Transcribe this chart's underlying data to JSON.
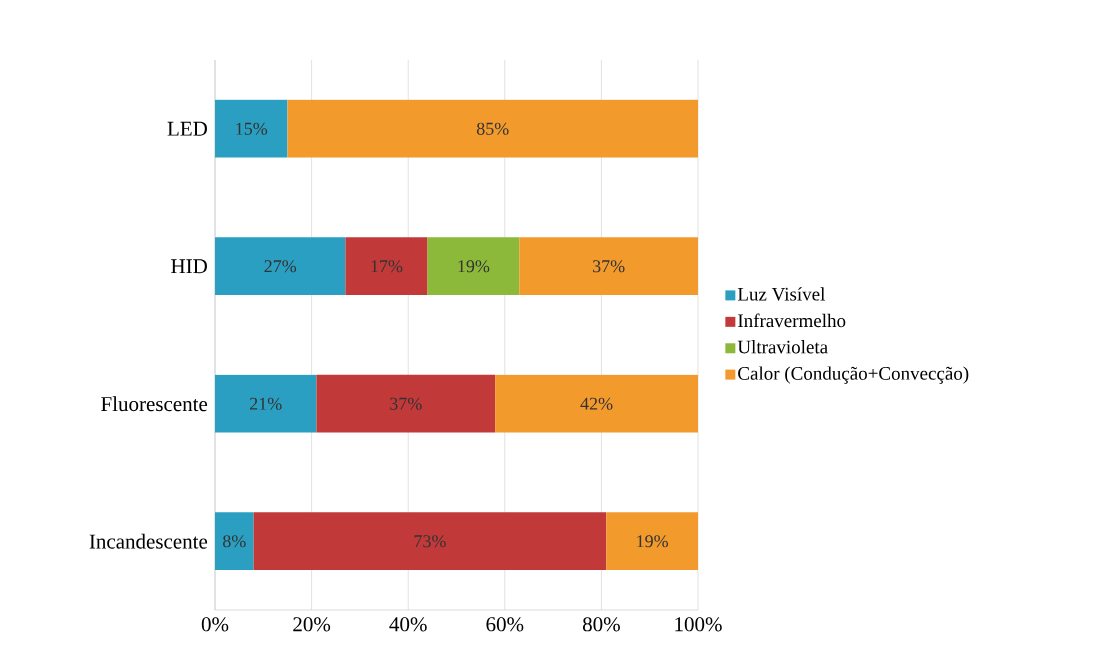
{
  "chart_data": {
    "type": "bar",
    "orientation": "horizontal",
    "stacked": true,
    "categories": [
      "LED",
      "HID",
      "Fluorescente",
      "Incandescente"
    ],
    "series": [
      {
        "name": "Luz Visível",
        "color": "#2b9fc1",
        "values": [
          15,
          27,
          21,
          8
        ],
        "value_labels": [
          "15%",
          "27%",
          "21%",
          "8%"
        ]
      },
      {
        "name": "Infravermelho",
        "color": "#c2393a",
        "values": [
          null,
          17,
          37,
          73
        ],
        "value_labels": [
          null,
          "17%",
          "37%",
          "73%"
        ]
      },
      {
        "name": "Ultravioleta",
        "color": "#8db93b",
        "values": [
          null,
          19,
          null,
          null
        ],
        "value_labels": [
          null,
          "19%",
          null,
          null
        ]
      },
      {
        "name": "Calor (Condução+Convecção)",
        "color": "#f39a2c",
        "values": [
          85,
          37,
          42,
          19
        ],
        "value_labels": [
          "85%",
          "37%",
          "42%",
          "19%"
        ]
      }
    ],
    "xlim": [
      0,
      100
    ],
    "xticks": [
      {
        "value": 0,
        "label": "0%"
      },
      {
        "value": 20,
        "label": "20%"
      },
      {
        "value": 40,
        "label": "40%"
      },
      {
        "value": 60,
        "label": "60%"
      },
      {
        "value": 80,
        "label": "80%"
      },
      {
        "value": 100,
        "label": "100%"
      }
    ],
    "grid": "x",
    "legend": "right"
  }
}
